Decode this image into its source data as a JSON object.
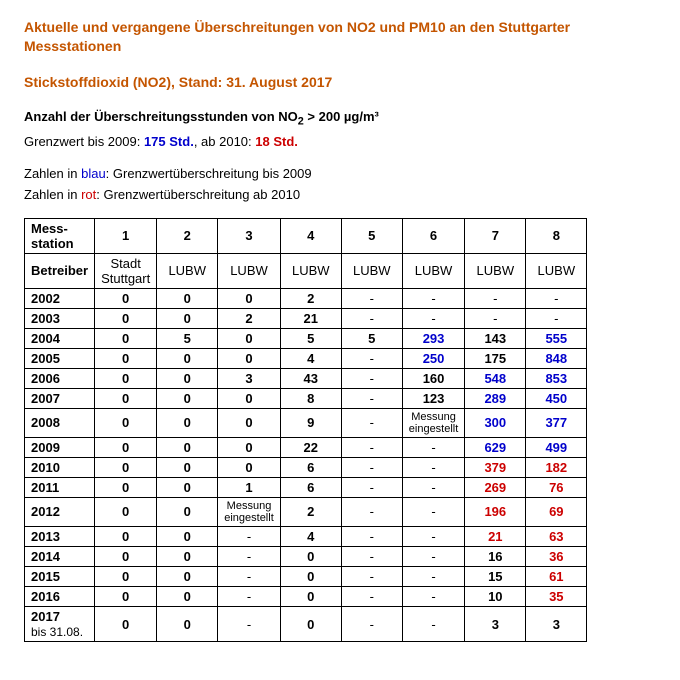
{
  "title": "Aktuelle und vergangene Überschreitungen von NO2 und PM10 an den Stuttgarter Messstationen",
  "subtitle": "Stickstoffdioxid (NO2), Stand: 31. August 2017",
  "threshold_line_prefix": "Anzahl der Überschreitungsstunden von NO",
  "threshold_line_suffix": " > 200 µg/m³",
  "limit_line_a": "Grenzwert bis 2009: ",
  "limit_blue": "175 Std.",
  "limit_line_b": ", ab 2010: ",
  "limit_red": "18 Std.",
  "legend_a1": "Zahlen in ",
  "legend_a2": "blau",
  "legend_a3": ": Grenzwertüberschreitung bis 2009",
  "legend_b1": "Zahlen in ",
  "legend_b2": "rot",
  "legend_b3": ": Grenzwertüberschreitung ab 2010",
  "colors": {
    "heading": "#c45500",
    "blue": "#0000cc",
    "red": "#cc0000",
    "border": "#000000",
    "background": "#ffffff"
  },
  "table": {
    "header1_label": "Mess-\nstation",
    "header2_label": "Betreiber",
    "station_numbers": [
      "1",
      "2",
      "3",
      "4",
      "5",
      "6",
      "7",
      "8"
    ],
    "operators": [
      "Stadt\nStuttgart",
      "LUBW",
      "LUBW",
      "LUBW",
      "LUBW",
      "LUBW",
      "LUBW",
      "LUBW"
    ],
    "rows": [
      {
        "year": "2002",
        "cells": [
          {
            "v": "0"
          },
          {
            "v": "0"
          },
          {
            "v": "0"
          },
          {
            "v": "2"
          },
          {
            "v": "-"
          },
          {
            "v": "-"
          },
          {
            "v": "-"
          },
          {
            "v": "-"
          }
        ]
      },
      {
        "year": "2003",
        "cells": [
          {
            "v": "0"
          },
          {
            "v": "0"
          },
          {
            "v": "2"
          },
          {
            "v": "21"
          },
          {
            "v": "-"
          },
          {
            "v": "-"
          },
          {
            "v": "-"
          },
          {
            "v": "-"
          }
        ]
      },
      {
        "year": "2004",
        "cells": [
          {
            "v": "0"
          },
          {
            "v": "5"
          },
          {
            "v": "0"
          },
          {
            "v": "5"
          },
          {
            "v": "5"
          },
          {
            "v": "293",
            "c": "blue"
          },
          {
            "v": "143"
          },
          {
            "v": "555",
            "c": "blue"
          }
        ]
      },
      {
        "year": "2005",
        "cells": [
          {
            "v": "0"
          },
          {
            "v": "0"
          },
          {
            "v": "0"
          },
          {
            "v": "4"
          },
          {
            "v": "-"
          },
          {
            "v": "250",
            "c": "blue"
          },
          {
            "v": "175"
          },
          {
            "v": "848",
            "c": "blue"
          }
        ]
      },
      {
        "year": "2006",
        "cells": [
          {
            "v": "0"
          },
          {
            "v": "0"
          },
          {
            "v": "3"
          },
          {
            "v": "43"
          },
          {
            "v": "-"
          },
          {
            "v": "160"
          },
          {
            "v": "548",
            "c": "blue"
          },
          {
            "v": "853",
            "c": "blue"
          }
        ]
      },
      {
        "year": "2007",
        "cells": [
          {
            "v": "0"
          },
          {
            "v": "0"
          },
          {
            "v": "0"
          },
          {
            "v": "8"
          },
          {
            "v": "-"
          },
          {
            "v": "123"
          },
          {
            "v": "289",
            "c": "blue"
          },
          {
            "v": "450",
            "c": "blue"
          }
        ]
      },
      {
        "year": "2008",
        "cells": [
          {
            "v": "0"
          },
          {
            "v": "0"
          },
          {
            "v": "0"
          },
          {
            "v": "9"
          },
          {
            "v": "-"
          },
          {
            "v": "Messung\neingestellt",
            "small": true
          },
          {
            "v": "300",
            "c": "blue"
          },
          {
            "v": "377",
            "c": "blue"
          }
        ]
      },
      {
        "year": "2009",
        "cells": [
          {
            "v": "0"
          },
          {
            "v": "0"
          },
          {
            "v": "0"
          },
          {
            "v": "22"
          },
          {
            "v": "-"
          },
          {
            "v": "-"
          },
          {
            "v": "629",
            "c": "blue"
          },
          {
            "v": "499",
            "c": "blue"
          }
        ]
      },
      {
        "year": "2010",
        "cells": [
          {
            "v": "0"
          },
          {
            "v": "0"
          },
          {
            "v": "0"
          },
          {
            "v": "6"
          },
          {
            "v": "-"
          },
          {
            "v": "-"
          },
          {
            "v": "379",
            "c": "red"
          },
          {
            "v": "182",
            "c": "red"
          }
        ]
      },
      {
        "year": "2011",
        "cells": [
          {
            "v": "0"
          },
          {
            "v": "0"
          },
          {
            "v": "1"
          },
          {
            "v": "6"
          },
          {
            "v": "-"
          },
          {
            "v": "-"
          },
          {
            "v": "269",
            "c": "red"
          },
          {
            "v": "76",
            "c": "red"
          }
        ]
      },
      {
        "year": "2012",
        "cells": [
          {
            "v": "0"
          },
          {
            "v": "0"
          },
          {
            "v": "Messung\neingestellt",
            "small": true
          },
          {
            "v": "2"
          },
          {
            "v": "-"
          },
          {
            "v": "-"
          },
          {
            "v": "196",
            "c": "red"
          },
          {
            "v": "69",
            "c": "red"
          }
        ]
      },
      {
        "year": "2013",
        "cells": [
          {
            "v": "0"
          },
          {
            "v": "0"
          },
          {
            "v": "-"
          },
          {
            "v": "4"
          },
          {
            "v": "-"
          },
          {
            "v": "-"
          },
          {
            "v": "21",
            "c": "red"
          },
          {
            "v": "63",
            "c": "red"
          }
        ]
      },
      {
        "year": "2014",
        "cells": [
          {
            "v": "0"
          },
          {
            "v": "0"
          },
          {
            "v": "-"
          },
          {
            "v": "0"
          },
          {
            "v": "-"
          },
          {
            "v": "-"
          },
          {
            "v": "16"
          },
          {
            "v": "36",
            "c": "red"
          }
        ]
      },
      {
        "year": "2015",
        "cells": [
          {
            "v": "0"
          },
          {
            "v": "0"
          },
          {
            "v": "-"
          },
          {
            "v": "0"
          },
          {
            "v": "-"
          },
          {
            "v": "-"
          },
          {
            "v": "15"
          },
          {
            "v": "61",
            "c": "red"
          }
        ]
      },
      {
        "year": "2016",
        "cells": [
          {
            "v": "0"
          },
          {
            "v": "0"
          },
          {
            "v": "-"
          },
          {
            "v": "0"
          },
          {
            "v": "-"
          },
          {
            "v": "-"
          },
          {
            "v": "10"
          },
          {
            "v": "35",
            "c": "red"
          }
        ]
      },
      {
        "year": "2017",
        "year_sub": "bis 31.08.",
        "cells": [
          {
            "v": "0"
          },
          {
            "v": "0"
          },
          {
            "v": "-"
          },
          {
            "v": "0"
          },
          {
            "v": "-"
          },
          {
            "v": "-"
          },
          {
            "v": "3"
          },
          {
            "v": "3"
          }
        ]
      }
    ]
  }
}
